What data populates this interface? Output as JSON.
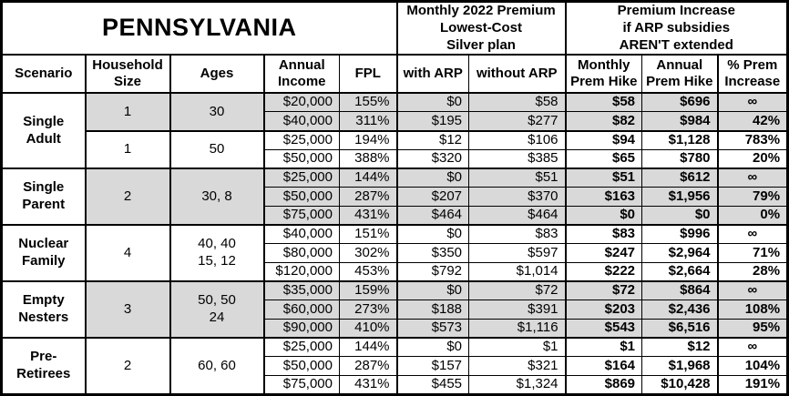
{
  "title": "PENNSYLVANIA",
  "colors": {
    "shaded_row": "#d9d9d9",
    "border": "#000000",
    "background": "#ffffff"
  },
  "header": {
    "monthly_premium_group": "Monthly 2022 Premium\nLowest-Cost\nSilver plan",
    "increase_group": "Premium Increase\nif ARP subsidies\nAREN'T extended",
    "scenario": "Scenario",
    "household_size": "Household\nSize",
    "ages": "Ages",
    "annual_income": "Annual\nIncome",
    "fpl": "FPL",
    "with_arp": "with ARP",
    "without_arp": "without ARP",
    "monthly_prem_hike": "Monthly\nPrem Hike",
    "annual_prem_hike": "Annual\nPrem Hike",
    "pct_prem_increase": "% Prem\nIncrease"
  },
  "groups": [
    {
      "scenario": "Single\nAdult",
      "subgroups": [
        {
          "household_size": "1",
          "ages": "30",
          "shaded": true,
          "rows": [
            {
              "income": "$20,000",
              "fpl": "155%",
              "with_arp": "$0",
              "without_arp": "$58",
              "monthly_hike": "$58",
              "annual_hike": "$696",
              "pct_increase": "∞"
            },
            {
              "income": "$40,000",
              "fpl": "311%",
              "with_arp": "$195",
              "without_arp": "$277",
              "monthly_hike": "$82",
              "annual_hike": "$984",
              "pct_increase": "42%"
            }
          ]
        },
        {
          "household_size": "1",
          "ages": "50",
          "shaded": false,
          "rows": [
            {
              "income": "$25,000",
              "fpl": "194%",
              "with_arp": "$12",
              "without_arp": "$106",
              "monthly_hike": "$94",
              "annual_hike": "$1,128",
              "pct_increase": "783%"
            },
            {
              "income": "$50,000",
              "fpl": "388%",
              "with_arp": "$320",
              "without_arp": "$385",
              "monthly_hike": "$65",
              "annual_hike": "$780",
              "pct_increase": "20%"
            }
          ]
        }
      ]
    },
    {
      "scenario": "Single\nParent",
      "subgroups": [
        {
          "household_size": "2",
          "ages": "30, 8",
          "shaded": true,
          "rows": [
            {
              "income": "$25,000",
              "fpl": "144%",
              "with_arp": "$0",
              "without_arp": "$51",
              "monthly_hike": "$51",
              "annual_hike": "$612",
              "pct_increase": "∞"
            },
            {
              "income": "$50,000",
              "fpl": "287%",
              "with_arp": "$207",
              "without_arp": "$370",
              "monthly_hike": "$163",
              "annual_hike": "$1,956",
              "pct_increase": "79%"
            },
            {
              "income": "$75,000",
              "fpl": "431%",
              "with_arp": "$464",
              "without_arp": "$464",
              "monthly_hike": "$0",
              "annual_hike": "$0",
              "pct_increase": "0%"
            }
          ]
        }
      ]
    },
    {
      "scenario": "Nuclear\nFamily",
      "subgroups": [
        {
          "household_size": "4",
          "ages": "40, 40\n15, 12",
          "shaded": false,
          "rows": [
            {
              "income": "$40,000",
              "fpl": "151%",
              "with_arp": "$0",
              "without_arp": "$83",
              "monthly_hike": "$83",
              "annual_hike": "$996",
              "pct_increase": "∞"
            },
            {
              "income": "$80,000",
              "fpl": "302%",
              "with_arp": "$350",
              "without_arp": "$597",
              "monthly_hike": "$247",
              "annual_hike": "$2,964",
              "pct_increase": "71%"
            },
            {
              "income": "$120,000",
              "fpl": "453%",
              "with_arp": "$792",
              "without_arp": "$1,014",
              "monthly_hike": "$222",
              "annual_hike": "$2,664",
              "pct_increase": "28%"
            }
          ]
        }
      ]
    },
    {
      "scenario": "Empty\nNesters",
      "subgroups": [
        {
          "household_size": "3",
          "ages": "50, 50\n24",
          "shaded": true,
          "rows": [
            {
              "income": "$35,000",
              "fpl": "159%",
              "with_arp": "$0",
              "without_arp": "$72",
              "monthly_hike": "$72",
              "annual_hike": "$864",
              "pct_increase": "∞"
            },
            {
              "income": "$60,000",
              "fpl": "273%",
              "with_arp": "$188",
              "without_arp": "$391",
              "monthly_hike": "$203",
              "annual_hike": "$2,436",
              "pct_increase": "108%"
            },
            {
              "income": "$90,000",
              "fpl": "410%",
              "with_arp": "$573",
              "without_arp": "$1,116",
              "monthly_hike": "$543",
              "annual_hike": "$6,516",
              "pct_increase": "95%"
            }
          ]
        }
      ]
    },
    {
      "scenario": "Pre-\nRetirees",
      "subgroups": [
        {
          "household_size": "2",
          "ages": "60, 60",
          "shaded": false,
          "rows": [
            {
              "income": "$25,000",
              "fpl": "144%",
              "with_arp": "$0",
              "without_arp": "$1",
              "monthly_hike": "$1",
              "annual_hike": "$12",
              "pct_increase": "∞"
            },
            {
              "income": "$50,000",
              "fpl": "287%",
              "with_arp": "$157",
              "without_arp": "$321",
              "monthly_hike": "$164",
              "annual_hike": "$1,968",
              "pct_increase": "104%"
            },
            {
              "income": "$75,000",
              "fpl": "431%",
              "with_arp": "$455",
              "without_arp": "$1,324",
              "monthly_hike": "$869",
              "annual_hike": "$10,428",
              "pct_increase": "191%"
            }
          ]
        }
      ]
    }
  ]
}
